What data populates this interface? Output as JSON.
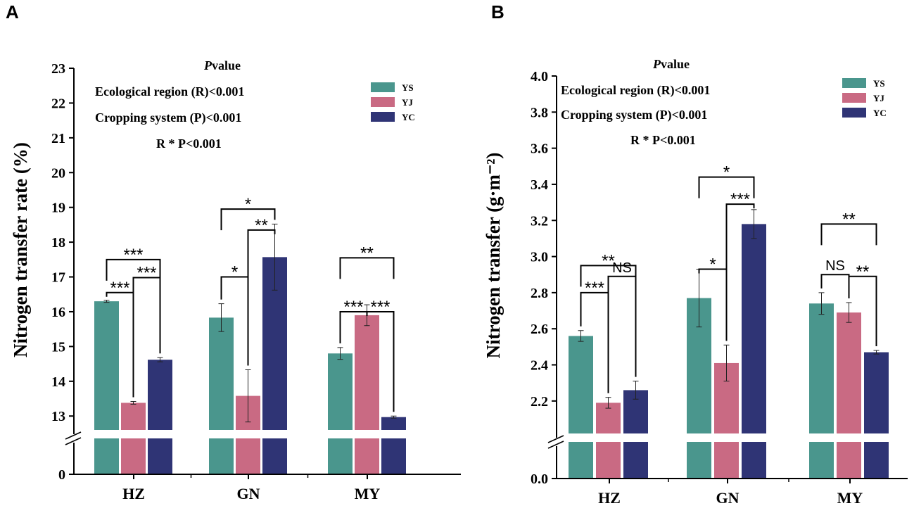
{
  "chart_data": [
    {
      "panel": "A",
      "type": "bar",
      "ylabel": "Nitrogen transfer rate (%)",
      "categories": [
        "HZ",
        "GN",
        "MY"
      ],
      "series": [
        {
          "name": "YS",
          "color": "#4a968d",
          "values": [
            16.3,
            15.83,
            14.8
          ],
          "errors": [
            0.03,
            0.4,
            0.17
          ]
        },
        {
          "name": "YJ",
          "color": "#c96a83",
          "values": [
            13.38,
            13.58,
            15.9
          ],
          "errors": [
            0.04,
            0.75,
            0.3
          ]
        },
        {
          "name": "YC",
          "color": "#2f3475",
          "values": [
            14.62,
            17.57,
            12.97
          ],
          "errors": [
            0.06,
            0.95,
            0.03
          ]
        }
      ],
      "ylim": [
        12.6,
        23
      ],
      "yticks": [
        13,
        14,
        15,
        16,
        17,
        18,
        19,
        20,
        21,
        22,
        23
      ],
      "axis_break": true,
      "zero_tick": "0",
      "stats_title_italic": "P",
      "stats_title_rest": "value",
      "stats": [
        "Ecological region (R)<0.001",
        "Cropping system (P)<0.001",
        "R * P<0.001"
      ],
      "significance": [
        {
          "cat": 0,
          "from": 0,
          "to": 1,
          "label": "***"
        },
        {
          "cat": 0,
          "from": 1,
          "to": 2,
          "label": "***"
        },
        {
          "cat": 0,
          "from": 0,
          "to": 2,
          "label": "***"
        },
        {
          "cat": 1,
          "from": 0,
          "to": 1,
          "label": "*"
        },
        {
          "cat": 1,
          "from": 1,
          "to": 2,
          "label": "**"
        },
        {
          "cat": 1,
          "from": 0,
          "to": 2,
          "label": "*"
        },
        {
          "cat": 2,
          "from": 0,
          "to": 1,
          "label": "***"
        },
        {
          "cat": 2,
          "from": 1,
          "to": 2,
          "label": "***"
        },
        {
          "cat": 2,
          "from": 0,
          "to": 2,
          "label": "**"
        }
      ]
    },
    {
      "panel": "B",
      "type": "bar",
      "ylabel": "Nitrogen transfer (g·m⁻²)",
      "categories": [
        "HZ",
        "GN",
        "MY"
      ],
      "series": [
        {
          "name": "YS",
          "color": "#4a968d",
          "values": [
            2.56,
            2.77,
            2.74
          ],
          "errors": [
            0.03,
            0.16,
            0.06
          ]
        },
        {
          "name": "YJ",
          "color": "#c96a83",
          "values": [
            2.19,
            2.41,
            2.69
          ],
          "errors": [
            0.03,
            0.1,
            0.055
          ]
        },
        {
          "name": "YC",
          "color": "#2f3475",
          "values": [
            2.26,
            3.18,
            2.47
          ],
          "errors": [
            0.05,
            0.08,
            0.01
          ]
        }
      ],
      "ylim": [
        2.02,
        4.0
      ],
      "yticks": [
        2.2,
        2.4,
        2.6,
        2.8,
        3.0,
        3.2,
        3.4,
        3.6,
        3.8,
        4.0
      ],
      "axis_break": true,
      "zero_tick": "0.0",
      "stats_title_italic": "P",
      "stats_title_rest": "value",
      "stats": [
        "Ecological region (R)<0.001",
        "Cropping system (P)<0.001",
        "R * P<0.001"
      ],
      "significance": [
        {
          "cat": 0,
          "from": 0,
          "to": 1,
          "label": "***"
        },
        {
          "cat": 0,
          "from": 1,
          "to": 2,
          "label": "NS"
        },
        {
          "cat": 0,
          "from": 0,
          "to": 2,
          "label": "**"
        },
        {
          "cat": 1,
          "from": 0,
          "to": 1,
          "label": "*"
        },
        {
          "cat": 1,
          "from": 1,
          "to": 2,
          "label": "***"
        },
        {
          "cat": 1,
          "from": 0,
          "to": 2,
          "label": "*"
        },
        {
          "cat": 2,
          "from": 0,
          "to": 1,
          "label": "NS"
        },
        {
          "cat": 2,
          "from": 1,
          "to": 2,
          "label": "**"
        },
        {
          "cat": 2,
          "from": 0,
          "to": 2,
          "label": "**"
        }
      ]
    }
  ]
}
